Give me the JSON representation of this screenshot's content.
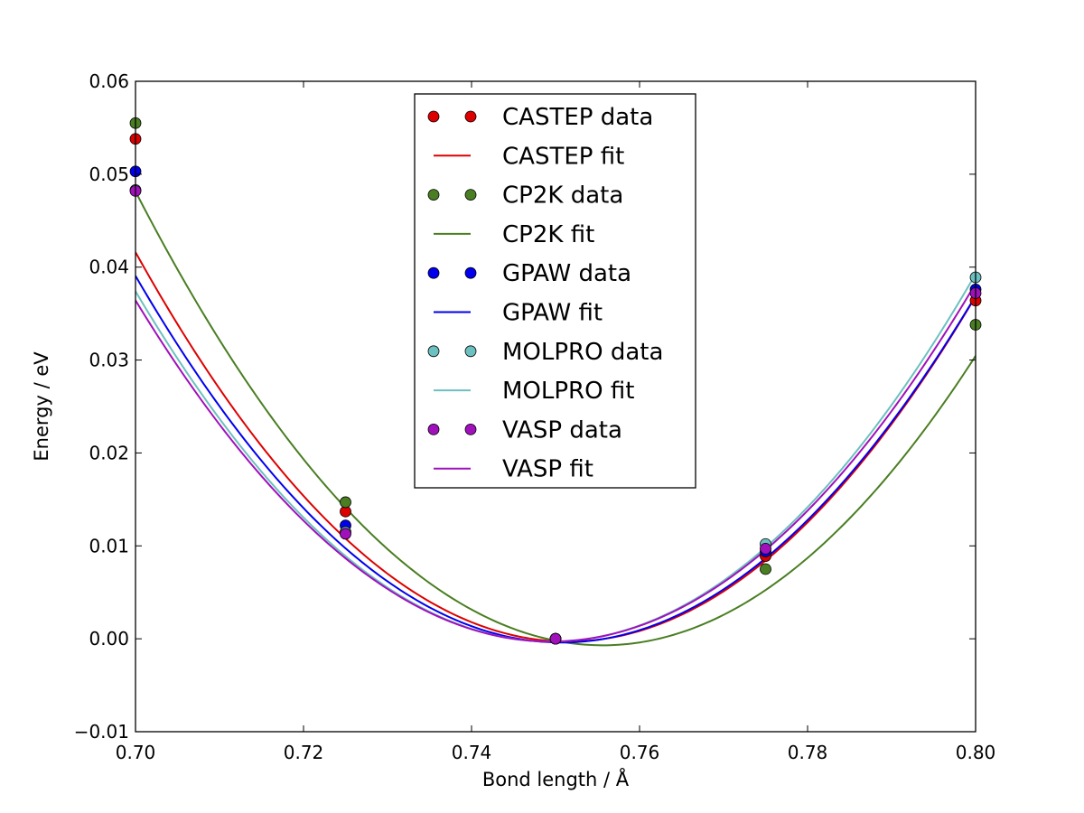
{
  "chart_data": {
    "type": "line",
    "title": "",
    "xlabel": "Bond length / Å",
    "ylabel": "Energy / eV",
    "xlim": [
      0.7,
      0.8
    ],
    "ylim": [
      -0.01,
      0.06
    ],
    "xticks": [
      0.7,
      0.72,
      0.74,
      0.76,
      0.78,
      0.8
    ],
    "xtick_labels": [
      "0.70",
      "0.72",
      "0.74",
      "0.76",
      "0.78",
      "0.80"
    ],
    "yticks": [
      -0.01,
      0.0,
      0.01,
      0.02,
      0.03,
      0.04,
      0.05,
      0.06
    ],
    "ytick_labels": [
      "−0.01",
      "0.00",
      "0.01",
      "0.02",
      "0.03",
      "0.04",
      "0.05",
      "0.06"
    ],
    "grid": false,
    "legend_position": "top-center",
    "x": [
      0.7,
      0.725,
      0.75,
      0.775,
      0.8
    ],
    "series": [
      {
        "name": "CASTEP data",
        "fit_name": "CASTEP fit",
        "color": "#dd0000",
        "values": [
          0.0538,
          0.0137,
          0.0,
          0.0089,
          0.0364
        ],
        "fit": {
          "a": 15.8,
          "x0": 0.7515,
          "c": -0.0003
        }
      },
      {
        "name": "CP2K data",
        "fit_name": "CP2K fit",
        "color": "#4a7e22",
        "values": [
          0.0555,
          0.0147,
          0.0,
          0.0075,
          0.0338
        ],
        "fit": {
          "a": 15.8,
          "x0": 0.7556,
          "c": -0.0007
        }
      },
      {
        "name": "GPAW data",
        "fit_name": "GPAW fit",
        "color": "#0000ee",
        "values": [
          0.0503,
          0.0122,
          0.0,
          0.0094,
          0.0376
        ],
        "fit": {
          "a": 15.35,
          "x0": 0.7507,
          "c": -0.0004
        }
      },
      {
        "name": "MOLPRO data",
        "fit_name": "MOLPRO fit",
        "color": "#6cc0c0",
        "values": [
          0.0483,
          0.0115,
          0.0,
          0.0102,
          0.0389
        ],
        "fit": {
          "a": 15.45,
          "x0": 0.7494,
          "c": -0.0003
        }
      },
      {
        "name": "VASP data",
        "fit_name": "VASP fit",
        "color": "#a010bb",
        "values": [
          0.0482,
          0.0113,
          0.0,
          0.0097,
          0.0372
        ],
        "fit": {
          "a": 15.05,
          "x0": 0.7494,
          "c": -0.0003
        }
      }
    ]
  }
}
